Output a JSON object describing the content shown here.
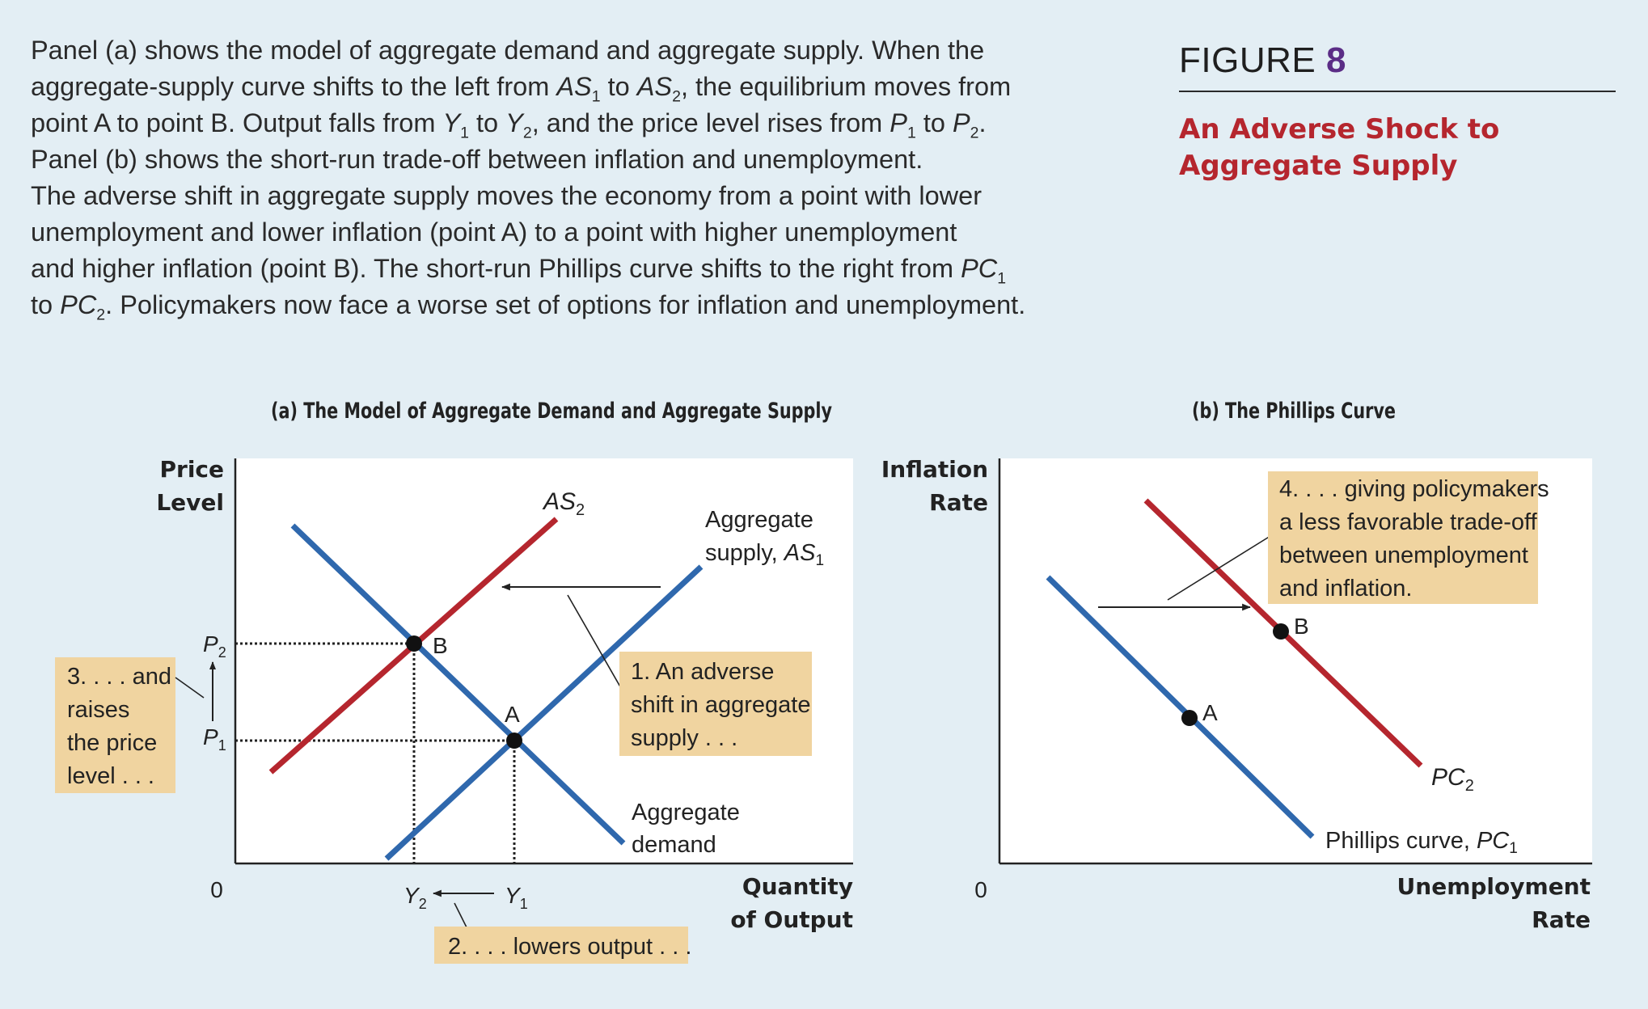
{
  "caption": {
    "lines": [
      [
        {
          "t": "Panel (a) shows the model of aggregate demand and aggregate supply. When the"
        }
      ],
      [
        {
          "t": "aggregate-supply curve shifts to the left from "
        },
        {
          "v": "AS",
          "s": "1"
        },
        {
          "t": " to "
        },
        {
          "v": "AS",
          "s": "2"
        },
        {
          "t": ", the equilibrium moves from"
        }
      ],
      [
        {
          "t": "point A to point B. Output falls from "
        },
        {
          "v": "Y",
          "s": "1"
        },
        {
          "t": " to "
        },
        {
          "v": "Y",
          "s": "2"
        },
        {
          "t": ", and the price level rises from "
        },
        {
          "v": "P",
          "s": "1"
        },
        {
          "t": " to "
        },
        {
          "v": "P",
          "s": "2"
        },
        {
          "t": "."
        }
      ],
      [
        {
          "t": "Panel (b) shows the short-run trade-off between inflation and unemployment."
        }
      ],
      [
        {
          "t": "The adverse shift in aggregate supply moves the economy from a point with lower"
        }
      ],
      [
        {
          "t": "unemployment and lower inflation (point A) to a point with higher unemployment"
        }
      ],
      [
        {
          "t": "and higher inflation (point B). The short-run Phillips curve shifts to the right from "
        },
        {
          "v": "PC",
          "s": "1"
        }
      ],
      [
        {
          "t": "to "
        },
        {
          "v": "PC",
          "s": "2"
        },
        {
          "t": ". Policymakers now face a worse set of options for inflation and unemployment."
        }
      ]
    ]
  },
  "figure": {
    "label": "FIGURE",
    "number": "8",
    "title_lines": [
      "An Adverse Shock to",
      "Aggregate Supply"
    ]
  },
  "panel_a": {
    "title": "(a) The Model of Aggregate Demand and Aggregate Supply",
    "y_axis_label": [
      "Price",
      "Level"
    ],
    "x_axis_label": [
      "Quantity",
      "of Output"
    ],
    "origin": "0",
    "curves": {
      "as2": {
        "v": "AS",
        "s": "2"
      },
      "as1": {
        "line1": "Aggregate",
        "line2_text": "supply, ",
        "v": "AS",
        "s": "1"
      },
      "ad": [
        "Aggregate",
        "demand"
      ]
    },
    "points": {
      "a": "A",
      "b": "B"
    },
    "ticks": {
      "p2": {
        "v": "P",
        "s": "2"
      },
      "p1": {
        "v": "P",
        "s": "1"
      },
      "y2": {
        "v": "Y",
        "s": "2"
      },
      "y1": {
        "v": "Y",
        "s": "1"
      }
    },
    "notes": {
      "n1": [
        "1. An adverse",
        "shift in aggregate",
        "supply . . ."
      ],
      "n2": [
        "2. . . . lowers output . . ."
      ],
      "n3": [
        "3. . . . and",
        "raises",
        "the price",
        "level . . ."
      ]
    }
  },
  "panel_b": {
    "title": "(b) The Phillips Curve",
    "y_axis_label": [
      "Inflation",
      "Rate"
    ],
    "x_axis_label": [
      "Unemployment",
      "Rate"
    ],
    "origin": "0",
    "curves": {
      "pc2": {
        "v": "PC",
        "s": "2"
      },
      "pc1": {
        "text": "Phillips curve, ",
        "v": "PC",
        "s": "1"
      }
    },
    "points": {
      "a": "A",
      "b": "B"
    },
    "notes": {
      "n4": [
        "4. . . . giving policymakers",
        "a less favorable trade-off",
        "between unemployment",
        "and inflation."
      ]
    }
  },
  "colors": {
    "blue_curve": "#2f68ad",
    "red_curve": "#b5262e",
    "note_fill": "#f0d4a0",
    "figure_number": "#5b2d86",
    "figure_title": "#b5262e",
    "background": "#e3eef4"
  }
}
